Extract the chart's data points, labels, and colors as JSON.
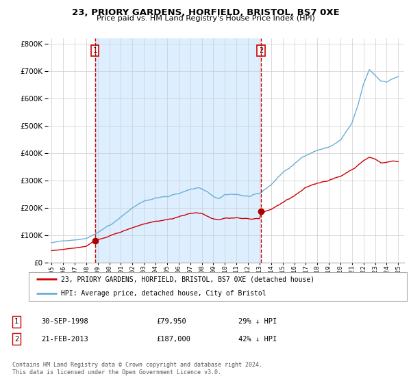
{
  "title": "23, PRIORY GARDENS, HORFIELD, BRISTOL, BS7 0XE",
  "subtitle": "Price paid vs. HM Land Registry's House Price Index (HPI)",
  "legend_line1": "23, PRIORY GARDENS, HORFIELD, BRISTOL, BS7 0XE (detached house)",
  "legend_line2": "HPI: Average price, detached house, City of Bristol",
  "transaction1_date": "30-SEP-1998",
  "transaction1_price": "£79,950",
  "transaction1_hpi": "29% ↓ HPI",
  "transaction1_year": 1998.75,
  "transaction1_value": 79950,
  "transaction2_date": "21-FEB-2013",
  "transaction2_price": "£187,000",
  "transaction2_hpi": "42% ↓ HPI",
  "transaction2_year": 2013.13,
  "transaction2_value": 187000,
  "footnote": "Contains HM Land Registry data © Crown copyright and database right 2024.\nThis data is licensed under the Open Government Licence v3.0.",
  "hpi_color": "#6baed6",
  "price_color": "#cc0000",
  "marker_color": "#aa0000",
  "vline_color": "#cc0000",
  "shade_color": "#ddeeff",
  "ylim_max": 800000,
  "ylim_min": 0,
  "yticks": [
    0,
    100000,
    200000,
    300000,
    400000,
    500000,
    600000,
    700000,
    800000
  ]
}
